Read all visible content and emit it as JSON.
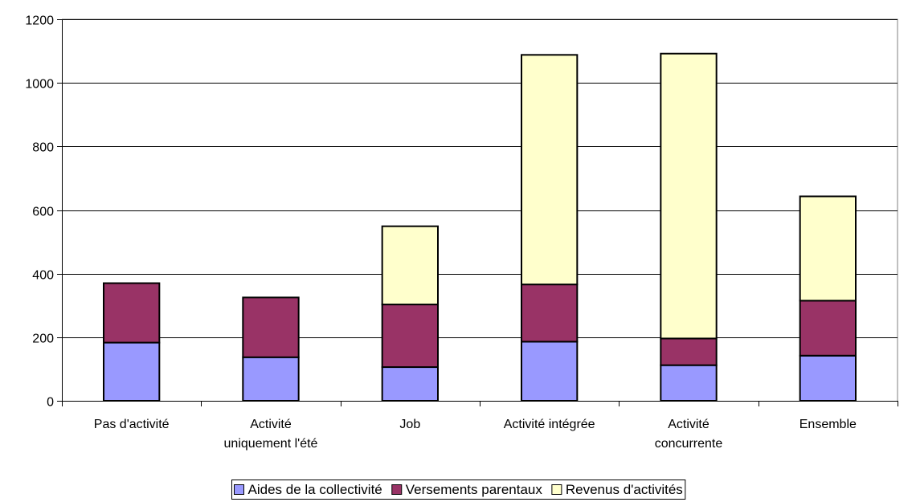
{
  "chart_data": {
    "type": "bar",
    "stacked": true,
    "categories": [
      [
        "Pas d'activité"
      ],
      [
        "Activité",
        "uniquement l'été"
      ],
      [
        "Job"
      ],
      [
        "Activité intégrée"
      ],
      [
        "Activité",
        "concurrente"
      ],
      [
        "Ensemble"
      ]
    ],
    "series": [
      {
        "name": "Aides de la collectivité",
        "color": "#9999ff",
        "values": [
          183,
          137,
          106,
          186,
          112,
          142
        ]
      },
      {
        "name": "Versements parentaux",
        "color": "#993366",
        "values": [
          187,
          188,
          197,
          180,
          84,
          173
        ]
      },
      {
        "name": "Revenus d'activités",
        "color": "#ffffcc",
        "values": [
          0,
          0,
          246,
          722,
          896,
          328
        ]
      }
    ],
    "yticks": [
      "0",
      "200",
      "400",
      "600",
      "800",
      "1000",
      "1200"
    ],
    "ylim": [
      0,
      1200
    ],
    "grid": true,
    "legend": "bottom"
  }
}
